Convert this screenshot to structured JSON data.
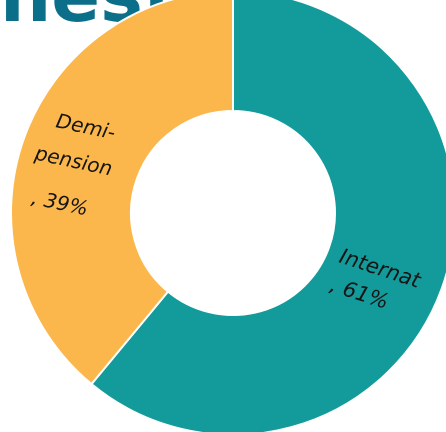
{
  "title": "nest",
  "chart_data": {
    "type": "pie",
    "donut": true,
    "title": "",
    "legend": "none",
    "series": [
      {
        "name": "Internat",
        "value": 61,
        "label_lines": [
          "Internat",
          ", 61%"
        ],
        "color": "#129b9a"
      },
      {
        "name": "Demi-pension",
        "value": 39,
        "label_lines": [
          "Demi-",
          "pension",
          ", 39%"
        ],
        "color": "#fbb74b"
      }
    ]
  }
}
